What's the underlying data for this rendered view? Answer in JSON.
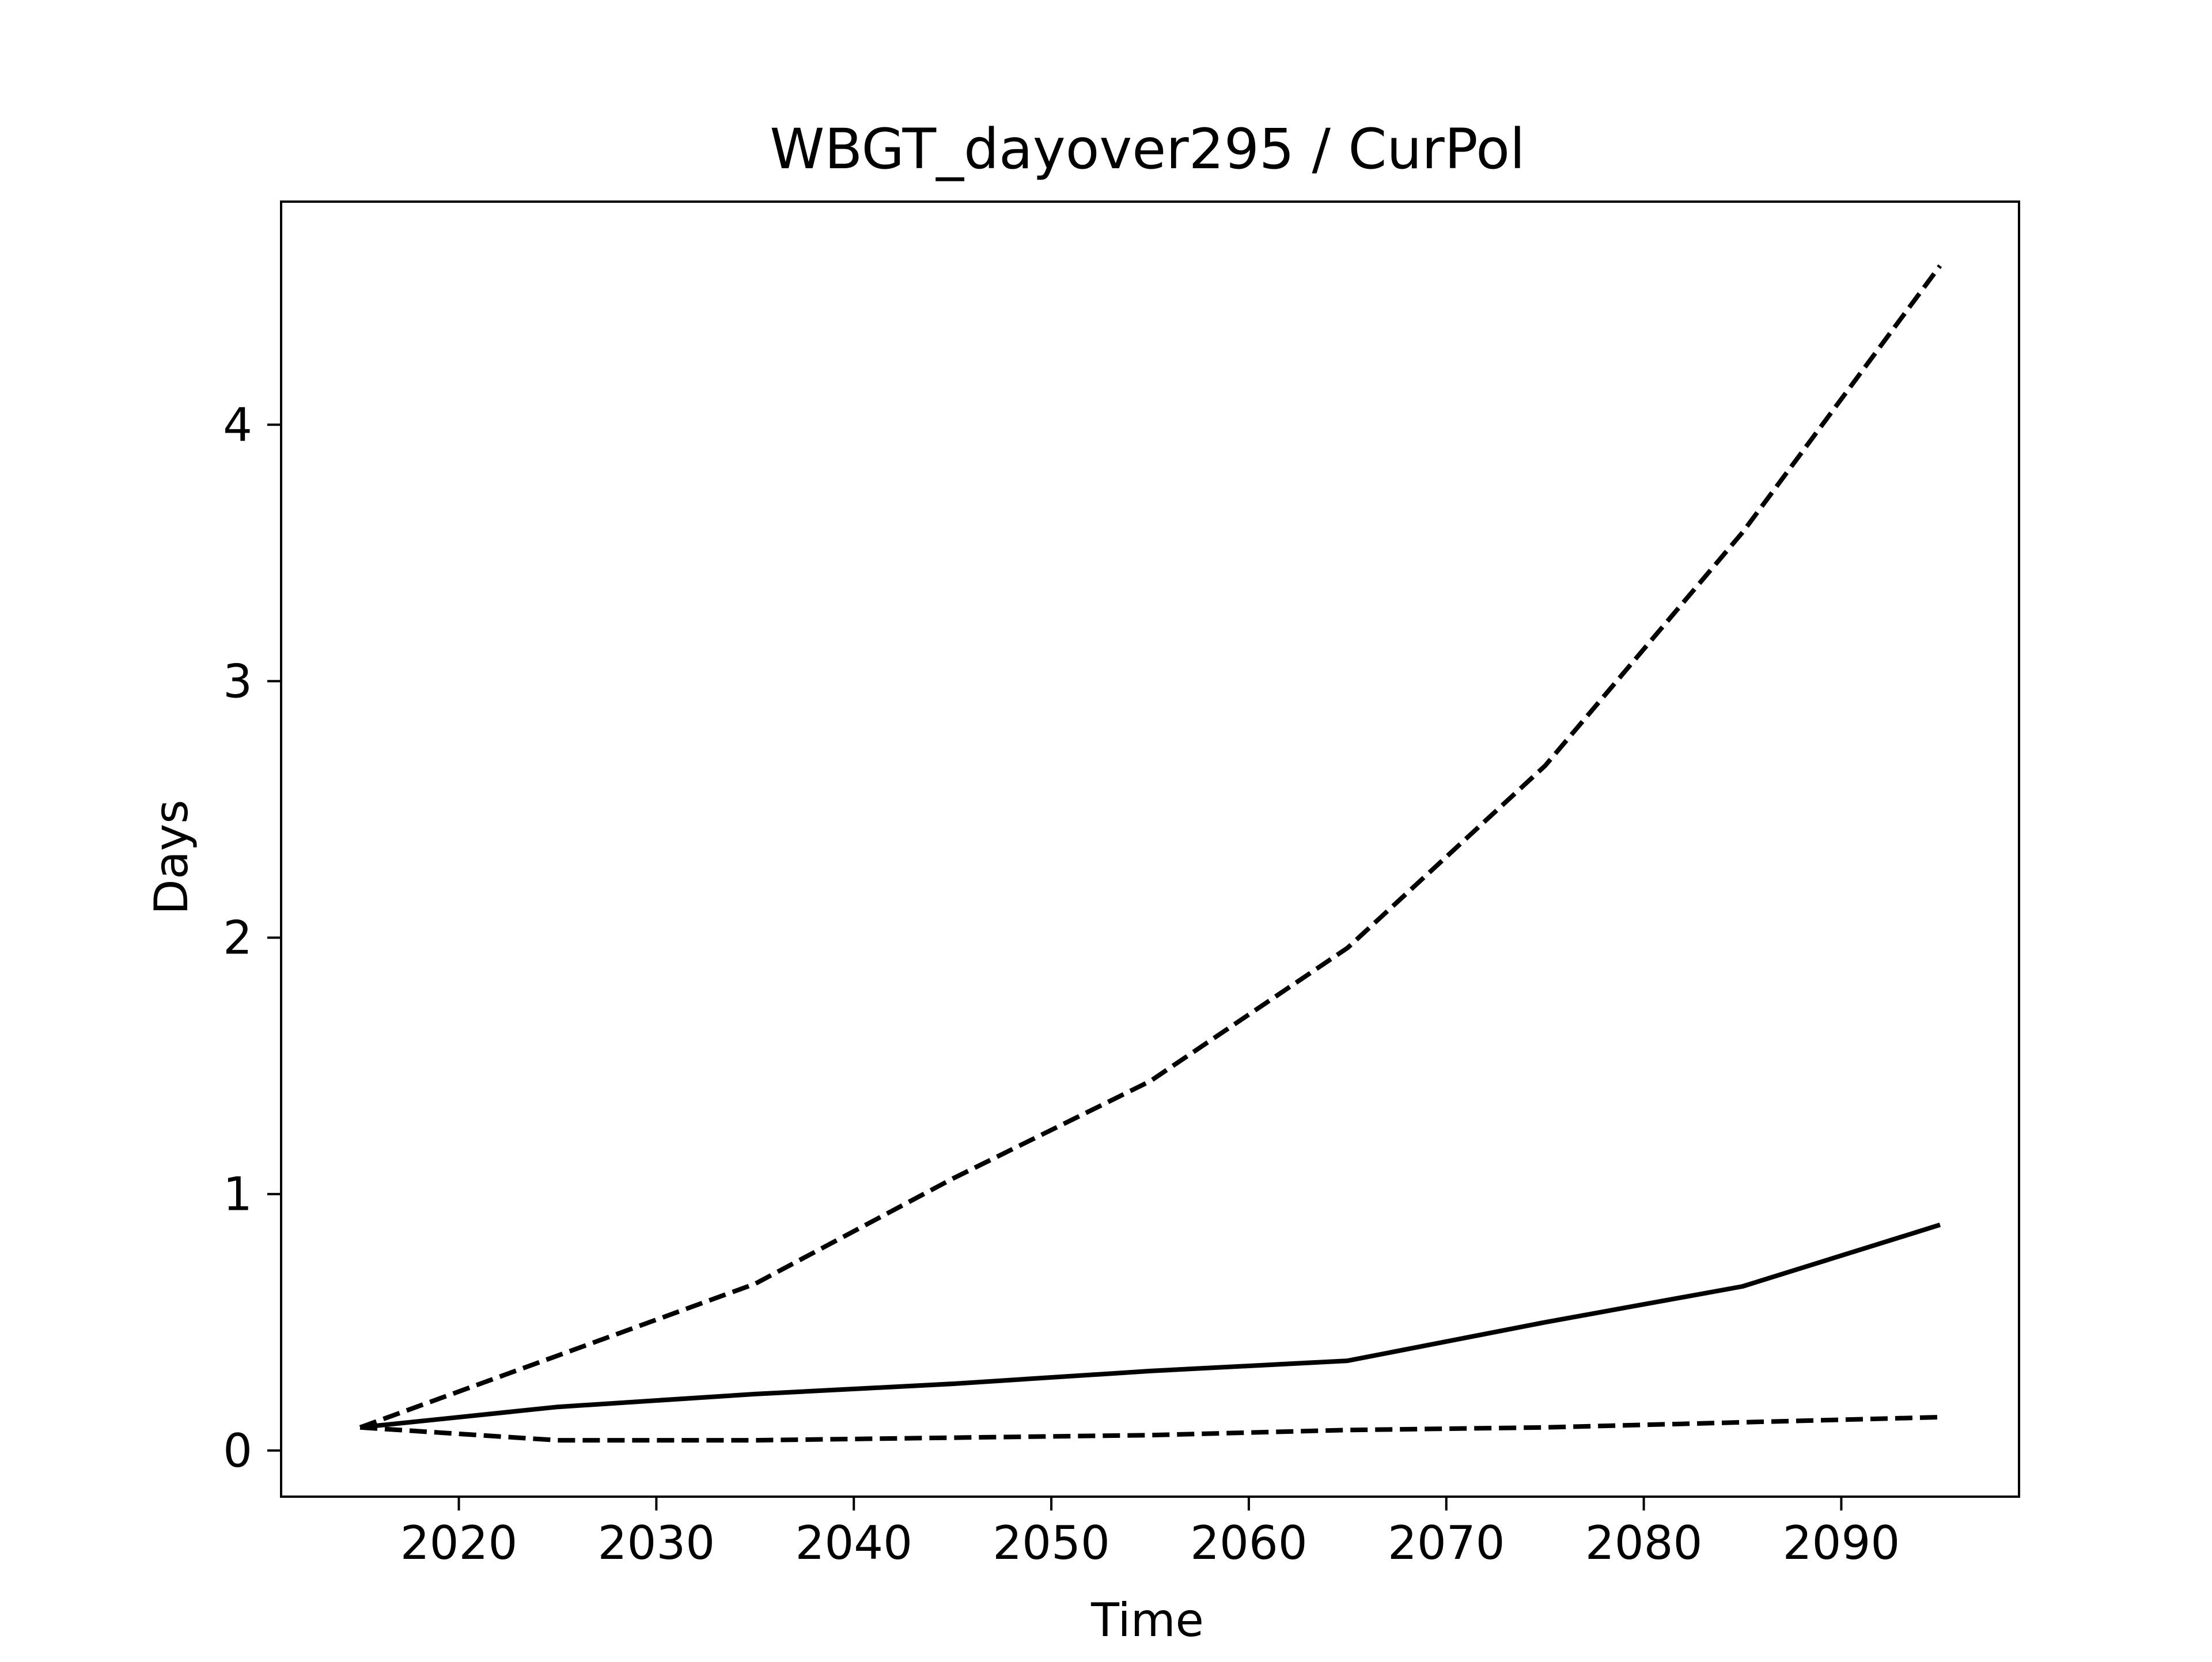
{
  "chart_data": {
    "type": "line",
    "title": "WBGT_dayover295 / CurPol",
    "xlabel": "Time",
    "ylabel": "Days",
    "xlim": [
      2011,
      2099
    ],
    "ylim": [
      -0.18,
      4.87
    ],
    "xticks": [
      2020,
      2030,
      2040,
      2050,
      2060,
      2070,
      2080,
      2090
    ],
    "yticks": [
      0,
      1,
      2,
      3,
      4
    ],
    "grid": false,
    "legend": "none",
    "x": [
      2015,
      2025,
      2035,
      2045,
      2055,
      2065,
      2075,
      2085,
      2095
    ],
    "series": [
      {
        "style": "solid",
        "color": "#000000",
        "values": [
          0.09,
          0.17,
          0.22,
          0.26,
          0.31,
          0.35,
          0.5,
          0.64,
          0.88
        ]
      },
      {
        "style": "dashed",
        "color": "#000000",
        "values": [
          0.09,
          0.37,
          0.65,
          1.06,
          1.44,
          1.96,
          2.67,
          3.58,
          4.62
        ]
      },
      {
        "style": "dashed",
        "color": "#000000",
        "values": [
          0.09,
          0.04,
          0.04,
          0.05,
          0.06,
          0.08,
          0.09,
          0.11,
          0.13
        ]
      }
    ]
  }
}
